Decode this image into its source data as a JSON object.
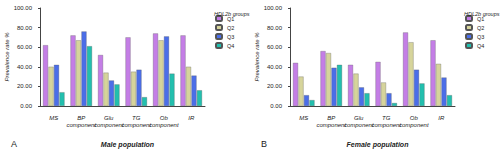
{
  "chart_data": [
    {
      "type": "bar",
      "title": "Male population",
      "annotations": [
        "A"
      ],
      "y_label": "Prevalence rate %",
      "legend_title": "HDL2b groups",
      "legend": "right",
      "grid": false,
      "categories": [
        "MS",
        "BP component",
        "Glu component",
        "TG component",
        "Ob component",
        "IR"
      ],
      "ylim": [
        0,
        100
      ],
      "yticks": [
        {
          "value": 0,
          "label": "0.00"
        },
        {
          "value": 20,
          "label": "20.00"
        },
        {
          "value": 40,
          "label": "40.00"
        },
        {
          "value": 60,
          "label": "60.00"
        },
        {
          "value": 80,
          "label": "80.00"
        },
        {
          "value": 100,
          "label": "100.00"
        }
      ],
      "series": [
        {
          "name": "Q1",
          "color": "#c47ee6",
          "values": [
            62,
            72,
            52,
            70,
            74,
            72
          ]
        },
        {
          "name": "Q2",
          "color": "#d6d49b",
          "values": [
            40,
            67,
            34,
            35,
            67,
            40
          ]
        },
        {
          "name": "Q3",
          "color": "#4b6ee8",
          "values": [
            42,
            76,
            26,
            37,
            71,
            31
          ]
        },
        {
          "name": "Q4",
          "color": "#22bfae",
          "values": [
            14,
            61,
            22,
            9,
            33,
            16
          ]
        }
      ]
    },
    {
      "type": "bar",
      "title": "Female population",
      "annotations": [
        "B"
      ],
      "y_label": "Prevalence rate %",
      "legend_title": "HDL2b groups",
      "legend": "right",
      "grid": false,
      "categories": [
        "MS",
        "BP component",
        "Glu component",
        "TG component",
        "Ob component",
        "IR"
      ],
      "ylim": [
        0,
        100
      ],
      "yticks": [
        {
          "value": 0,
          "label": "0.00"
        },
        {
          "value": 20,
          "label": "20.00"
        },
        {
          "value": 40,
          "label": "40.00"
        },
        {
          "value": 60,
          "label": "60.00"
        },
        {
          "value": 80,
          "label": "80.00"
        },
        {
          "value": 100,
          "label": "100.00"
        }
      ],
      "series": [
        {
          "name": "Q1",
          "color": "#c47ee6",
          "values": [
            44,
            56,
            42,
            45,
            75,
            67
          ]
        },
        {
          "name": "Q2",
          "color": "#d6d49b",
          "values": [
            30,
            54,
            33,
            24,
            65,
            43
          ]
        },
        {
          "name": "Q3",
          "color": "#4b6ee8",
          "values": [
            11,
            39,
            19,
            13,
            37,
            29
          ]
        },
        {
          "name": "Q4",
          "color": "#22bfae",
          "values": [
            6,
            42,
            13,
            3,
            23,
            11
          ]
        }
      ]
    }
  ]
}
